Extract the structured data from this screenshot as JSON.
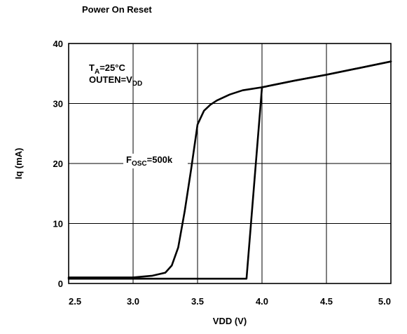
{
  "chart_data": {
    "type": "line",
    "title": "Power On Reset",
    "xlabel": "VDD (V)",
    "ylabel": "Iq (mA)",
    "xlim": [
      2.5,
      5.0
    ],
    "ylim": [
      0,
      40
    ],
    "x_ticks": [
      "2.5",
      "3.0",
      "3.5",
      "4.0",
      "4.5",
      "5.0"
    ],
    "y_ticks": [
      "0",
      "10",
      "20",
      "30",
      "40"
    ],
    "grid": true,
    "series": [
      {
        "x": [
          2.5,
          3.0,
          3.15,
          3.25,
          3.3,
          3.35,
          3.4,
          3.45,
          3.5,
          3.55,
          3.6,
          3.65,
          3.75,
          3.85,
          4.0,
          4.25,
          4.5,
          4.75,
          5.0
        ],
        "y": [
          1.0,
          1.0,
          1.3,
          1.8,
          3.0,
          6.0,
          12.0,
          19.0,
          26.5,
          28.8,
          29.8,
          30.5,
          31.5,
          32.2,
          32.7,
          33.8,
          34.8,
          35.9,
          37.0
        ]
      },
      {
        "x": [
          2.5,
          3.0,
          3.5,
          3.88,
          4.0,
          4.25,
          4.5,
          4.75,
          5.0
        ],
        "y": [
          0.8,
          0.8,
          0.8,
          0.8,
          32.7,
          33.8,
          34.8,
          35.9,
          37.0
        ]
      }
    ],
    "annotations": {
      "ta": {
        "main": "T",
        "sub": "A",
        "rest": "=25°C"
      },
      "outen": {
        "main": "OUTEN=V",
        "sub": "DD"
      },
      "fosc": {
        "main": "F",
        "sub": "OSC",
        "rest": "=500k"
      }
    }
  }
}
